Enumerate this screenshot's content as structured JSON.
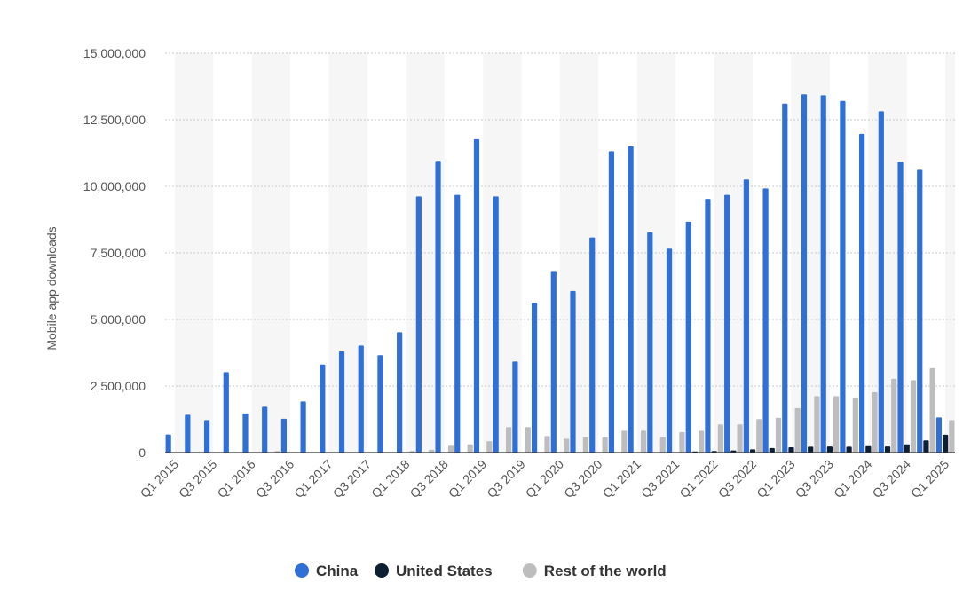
{
  "chart_data": {
    "type": "bar",
    "title": "",
    "ylabel": "Mobile app downloads",
    "xlabel": "",
    "ylim": [
      0,
      15000000
    ],
    "yticks": [
      0,
      2500000,
      5000000,
      7500000,
      10000000,
      12500000,
      15000000
    ],
    "ytick_labels": [
      "0",
      "2,500,000",
      "5,000,000",
      "7,500,000",
      "10,000,000",
      "12,500,000",
      "15,000,000"
    ],
    "categories": [
      "Q1 2015",
      "Q2 2015",
      "Q3 2015",
      "Q4 2015",
      "Q1 2016",
      "Q2 2016",
      "Q3 2016",
      "Q4 2016",
      "Q1 2017",
      "Q2 2017",
      "Q3 2017",
      "Q4 2017",
      "Q1 2018",
      "Q2 2018",
      "Q3 2018",
      "Q4 2018",
      "Q1 2019",
      "Q2 2019",
      "Q3 2019",
      "Q4 2019",
      "Q1 2020",
      "Q2 2020",
      "Q3 2020",
      "Q4 2020",
      "Q1 2021",
      "Q2 2021",
      "Q3 2021",
      "Q4 2021",
      "Q1 2022",
      "Q2 2022",
      "Q3 2022",
      "Q4 2022",
      "Q1 2023",
      "Q2 2023",
      "Q3 2023",
      "Q4 2023",
      "Q1 2024",
      "Q2 2024",
      "Q3 2024",
      "Q4 2024",
      "Q1 2025"
    ],
    "xtick_labels": [
      "Q1 2015",
      "Q3 2015",
      "Q1 2016",
      "Q3 2016",
      "Q1 2017",
      "Q3 2017",
      "Q1 2018",
      "Q3 2018",
      "Q1 2019",
      "Q3 2019",
      "Q1 2020",
      "Q3 2020",
      "Q1 2021",
      "Q3 2021",
      "Q1 2022",
      "Q3 2022",
      "Q1 2023",
      "Q3 2023",
      "Q1 2024",
      "Q3 2024",
      "Q1 2025"
    ],
    "series": [
      {
        "name": "China",
        "color": "#2f6fd6",
        "values": [
          680000,
          1420000,
          1220000,
          3020000,
          1470000,
          1720000,
          1270000,
          1920000,
          3310000,
          3800000,
          4020000,
          3660000,
          4520000,
          9620000,
          10960000,
          9680000,
          11770000,
          9620000,
          3420000,
          5620000,
          6820000,
          6070000,
          8080000,
          11320000,
          11510000,
          8270000,
          7660000,
          8670000,
          9530000,
          9680000,
          10260000,
          9920000,
          13110000,
          13460000,
          13420000,
          13210000,
          11970000,
          12820000,
          10920000,
          10620000,
          1320000
        ]
      },
      {
        "name": "United States",
        "color": "#0f1f33",
        "values": [
          0,
          0,
          0,
          0,
          0,
          0,
          0,
          0,
          0,
          0,
          0,
          0,
          0,
          0,
          0,
          0,
          0,
          0,
          0,
          0,
          0,
          0,
          0,
          0,
          0,
          0,
          0,
          40000,
          60000,
          80000,
          120000,
          170000,
          200000,
          220000,
          230000,
          220000,
          240000,
          230000,
          310000,
          460000,
          670000
        ]
      },
      {
        "name": "Rest of the world",
        "color": "#bdbdbd",
        "values": [
          0,
          0,
          0,
          0,
          0,
          60000,
          0,
          0,
          0,
          0,
          0,
          0,
          60000,
          110000,
          260000,
          310000,
          430000,
          960000,
          960000,
          620000,
          520000,
          570000,
          580000,
          820000,
          820000,
          580000,
          770000,
          820000,
          1060000,
          1060000,
          1260000,
          1310000,
          1670000,
          2120000,
          2120000,
          2070000,
          2270000,
          2770000,
          2720000,
          3170000,
          1220000
        ]
      }
    ],
    "grid": "horizontal-dotted",
    "legend_position": "bottom"
  }
}
